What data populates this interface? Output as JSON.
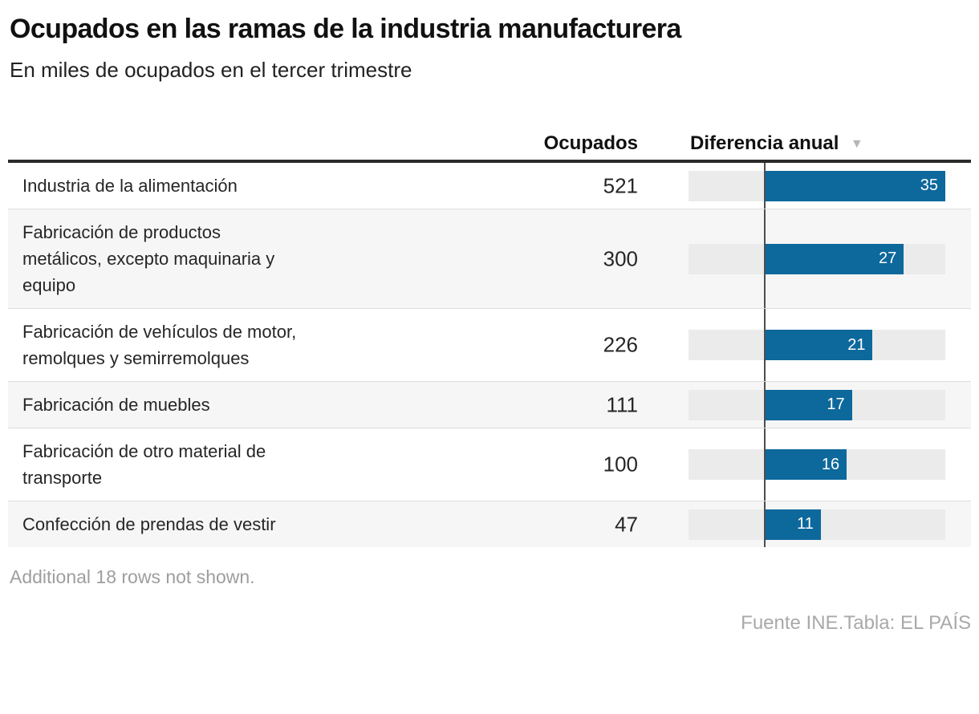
{
  "page": {
    "title": "Ocupados en las ramas de la industria manufacturera",
    "subtitle": "En miles de ocupados en el tercer trimestre",
    "note": "Additional 18 rows not shown.",
    "source": "Fuente INE.Tabla: EL PAÍS"
  },
  "table": {
    "headers": {
      "ocupados": "Ocupados",
      "diferencia": "Diferencia anual"
    },
    "sort_icon": "▼",
    "sort": {
      "column": "Diferencia anual",
      "direction": "desc"
    }
  },
  "chart_data": {
    "type": "bar",
    "title": "Ocupados en las ramas de la industria manufacturera",
    "subtitle": "En miles de ocupados en el tercer trimestre",
    "columns": [
      "",
      "Ocupados",
      "Diferencia anual"
    ],
    "rows": [
      {
        "label": "Industria de la alimentación",
        "ocupados": 521,
        "diferencia": 35
      },
      {
        "label": "Fabricación de productos metálicos, excepto maquinaria y equipo",
        "ocupados": 300,
        "diferencia": 27
      },
      {
        "label": "Fabricación de vehículos de motor, remolques y semirremolques",
        "ocupados": 226,
        "diferencia": 21
      },
      {
        "label": "Fabricación de muebles",
        "ocupados": 111,
        "diferencia": 17
      },
      {
        "label": "Fabricación de otro material de transporte",
        "ocupados": 100,
        "diferencia": 16
      },
      {
        "label": "Confección de prendas de vestir",
        "ocupados": 47,
        "diferencia": 11
      }
    ],
    "bar_axis": {
      "min": -14.5,
      "max": 35
    },
    "grid": false,
    "legend": false
  },
  "colors": {
    "bar": "#0d689c",
    "bar_track": "#ebebeb",
    "zero_line": "#4d4d4d",
    "row_alt_bg": "#f6f6f6",
    "top_border": "#2b2b2b",
    "muted_text": "#9e9e9e"
  }
}
